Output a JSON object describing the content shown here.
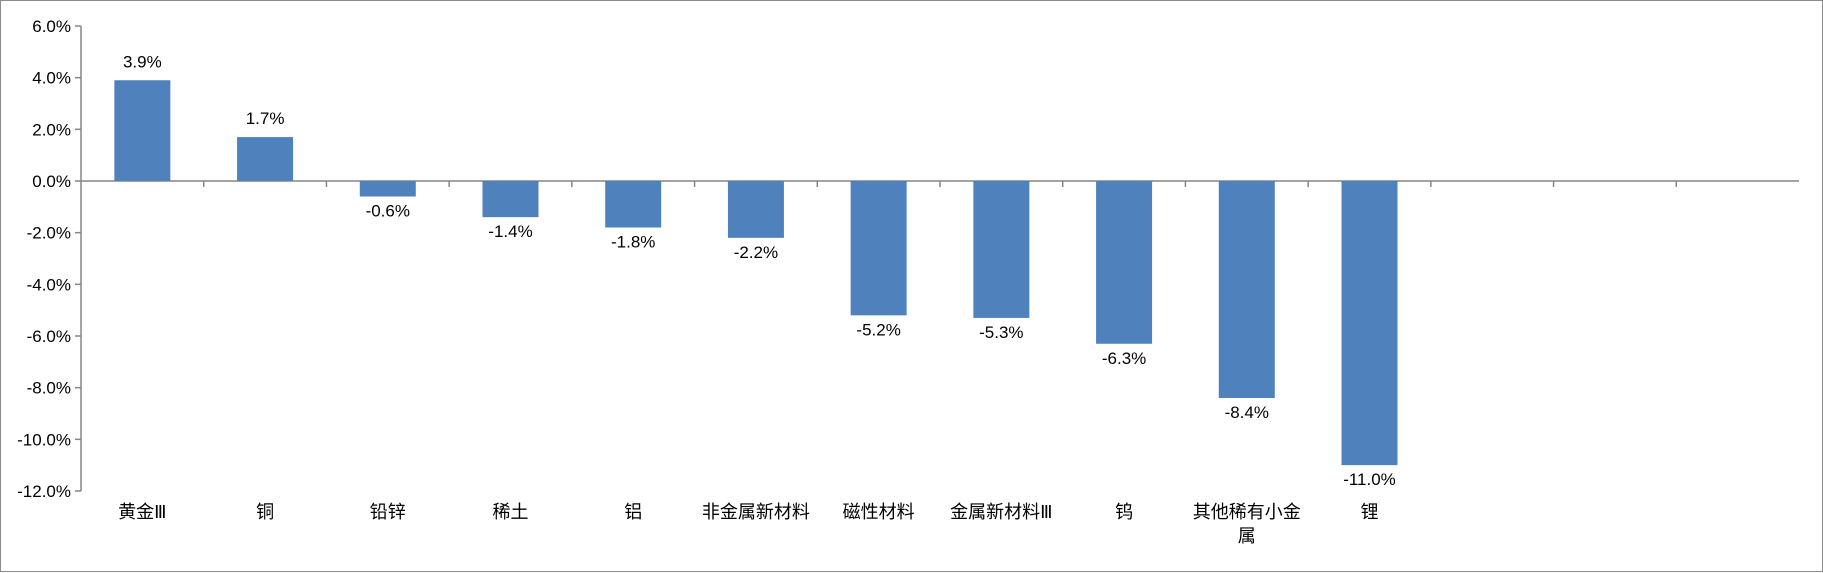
{
  "chart_data": {
    "type": "bar",
    "categories": [
      "黄金Ⅲ",
      "铜",
      "铅锌",
      "稀土",
      "铝",
      "非金属新材料",
      "磁性材料",
      "金属新材料Ⅲ",
      "钨",
      "其他稀有小金属",
      "锂"
    ],
    "values": [
      3.9,
      1.7,
      -0.6,
      -1.4,
      -1.8,
      -2.2,
      -5.2,
      -5.3,
      -6.3,
      -8.4,
      -11.0
    ],
    "data_labels": [
      "3.9%",
      "1.7%",
      "-0.6%",
      "-1.4%",
      "-1.8%",
      "-2.2%",
      "-5.2%",
      "-5.3%",
      "-6.3%",
      "-8.4%",
      "-11.0%"
    ],
    "y_ticks": [
      6,
      4,
      2,
      0,
      -2,
      -4,
      -6,
      -8,
      -10,
      -12
    ],
    "y_tick_labels": [
      "6.0%",
      "4.0%",
      "2.0%",
      "0.0%",
      "-2.0%",
      "-4.0%",
      "-6.0%",
      "-8.0%",
      "-10.0%",
      "-12.0%"
    ],
    "ylim": [
      -12,
      6
    ],
    "grid": false,
    "legend": "none",
    "title": "",
    "xlabel": "",
    "ylabel": "",
    "colors": {
      "bar": "#4F81BD",
      "axis": "#868686",
      "text": "#000000"
    }
  }
}
